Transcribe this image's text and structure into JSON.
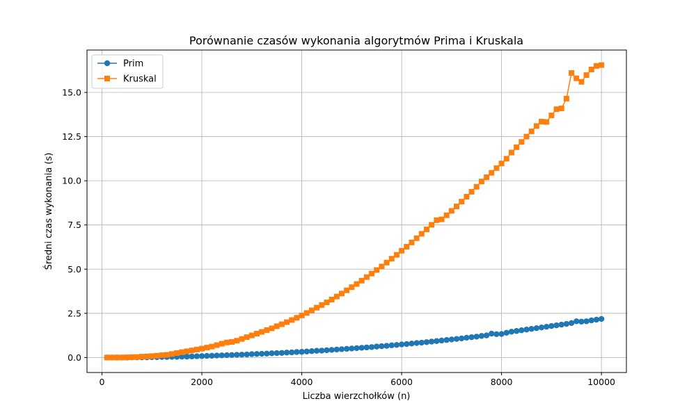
{
  "chart_data": {
    "type": "line",
    "title": "Porównanie czasów wykonania algorytmów Prima i Kruskala",
    "xlabel": "Liczba wierzchołków (n)",
    "ylabel": "Średni czas wykonania (s)",
    "xlim": [
      -300,
      10500
    ],
    "ylim": [
      -0.85,
      17.4
    ],
    "xticks": [
      0,
      2000,
      4000,
      6000,
      8000,
      10000
    ],
    "xtick_labels": [
      "0",
      "2000",
      "4000",
      "6000",
      "8000",
      "10000"
    ],
    "yticks": [
      0,
      2.5,
      5,
      7.5,
      10,
      12.5,
      15
    ],
    "ytick_labels": [
      "0.0",
      "2.5",
      "5.0",
      "7.5",
      "10.0",
      "12.5",
      "15.0"
    ],
    "grid": true,
    "legend": "top-left",
    "x": [
      100,
      200,
      300,
      400,
      500,
      600,
      700,
      800,
      900,
      1000,
      1100,
      1200,
      1300,
      1400,
      1500,
      1600,
      1700,
      1800,
      1900,
      2000,
      2100,
      2200,
      2300,
      2400,
      2500,
      2600,
      2700,
      2800,
      2900,
      3000,
      3100,
      3200,
      3300,
      3400,
      3500,
      3600,
      3700,
      3800,
      3900,
      4000,
      4100,
      4200,
      4300,
      4400,
      4500,
      4600,
      4700,
      4800,
      4900,
      5000,
      5100,
      5200,
      5300,
      5400,
      5500,
      5600,
      5700,
      5800,
      5900,
      6000,
      6100,
      6200,
      6300,
      6400,
      6500,
      6600,
      6700,
      6800,
      6900,
      7000,
      7100,
      7200,
      7300,
      7400,
      7500,
      7600,
      7700,
      7800,
      7900,
      8000,
      8100,
      8200,
      8300,
      8400,
      8500,
      8600,
      8700,
      8800,
      8900,
      9000,
      9100,
      9200,
      9300,
      9400,
      9500,
      9600,
      9700,
      9800,
      9900,
      10000
    ],
    "series": [
      {
        "name": "Prim",
        "color": "#1f77b4",
        "marker": "circle",
        "values": [
          0.0,
          0.0,
          0.0,
          0.0,
          0.0,
          0.01,
          0.01,
          0.01,
          0.01,
          0.02,
          0.02,
          0.03,
          0.03,
          0.04,
          0.04,
          0.05,
          0.05,
          0.06,
          0.07,
          0.08,
          0.09,
          0.1,
          0.11,
          0.12,
          0.13,
          0.14,
          0.15,
          0.16,
          0.17,
          0.19,
          0.2,
          0.21,
          0.22,
          0.24,
          0.25,
          0.26,
          0.28,
          0.29,
          0.31,
          0.32,
          0.34,
          0.36,
          0.38,
          0.39,
          0.41,
          0.43,
          0.45,
          0.47,
          0.49,
          0.51,
          0.53,
          0.55,
          0.57,
          0.59,
          0.62,
          0.64,
          0.66,
          0.69,
          0.71,
          0.74,
          0.76,
          0.79,
          0.82,
          0.84,
          0.87,
          0.9,
          0.93,
          0.96,
          0.99,
          1.02,
          1.05,
          1.08,
          1.12,
          1.15,
          1.18,
          1.22,
          1.25,
          1.35,
          1.32,
          1.33,
          1.4,
          1.46,
          1.5,
          1.54,
          1.58,
          1.62,
          1.66,
          1.7,
          1.74,
          1.78,
          1.82,
          1.86,
          1.9,
          1.95,
          2.05,
          2.03,
          2.05,
          2.1,
          2.14,
          2.18
        ]
      },
      {
        "name": "Kruskal",
        "color": "#ff7f0e",
        "marker": "square",
        "values": [
          0.0,
          0.0,
          0.0,
          0.0,
          0.01,
          0.02,
          0.03,
          0.05,
          0.06,
          0.08,
          0.1,
          0.13,
          0.15,
          0.2,
          0.25,
          0.3,
          0.35,
          0.4,
          0.45,
          0.5,
          0.56,
          0.62,
          0.7,
          0.78,
          0.85,
          0.88,
          0.95,
          1.05,
          1.15,
          1.25,
          1.35,
          1.45,
          1.55,
          1.65,
          1.77,
          1.88,
          2.0,
          2.12,
          2.25,
          2.38,
          2.52,
          2.67,
          2.82,
          2.97,
          3.12,
          3.28,
          3.45,
          3.62,
          3.8,
          3.98,
          4.16,
          4.35,
          4.55,
          4.75,
          4.95,
          5.15,
          5.37,
          5.59,
          5.81,
          6.04,
          6.27,
          6.51,
          6.75,
          7.0,
          7.25,
          7.51,
          7.77,
          7.82,
          8.05,
          8.3,
          8.55,
          8.82,
          9.1,
          9.38,
          9.66,
          9.96,
          10.2,
          10.45,
          10.72,
          10.98,
          11.25,
          11.6,
          11.9,
          12.2,
          12.5,
          12.8,
          13.1,
          13.35,
          13.33,
          13.7,
          14.05,
          14.1,
          14.65,
          16.1,
          15.8,
          15.6,
          15.98,
          16.3,
          16.5,
          16.55
        ]
      }
    ]
  }
}
